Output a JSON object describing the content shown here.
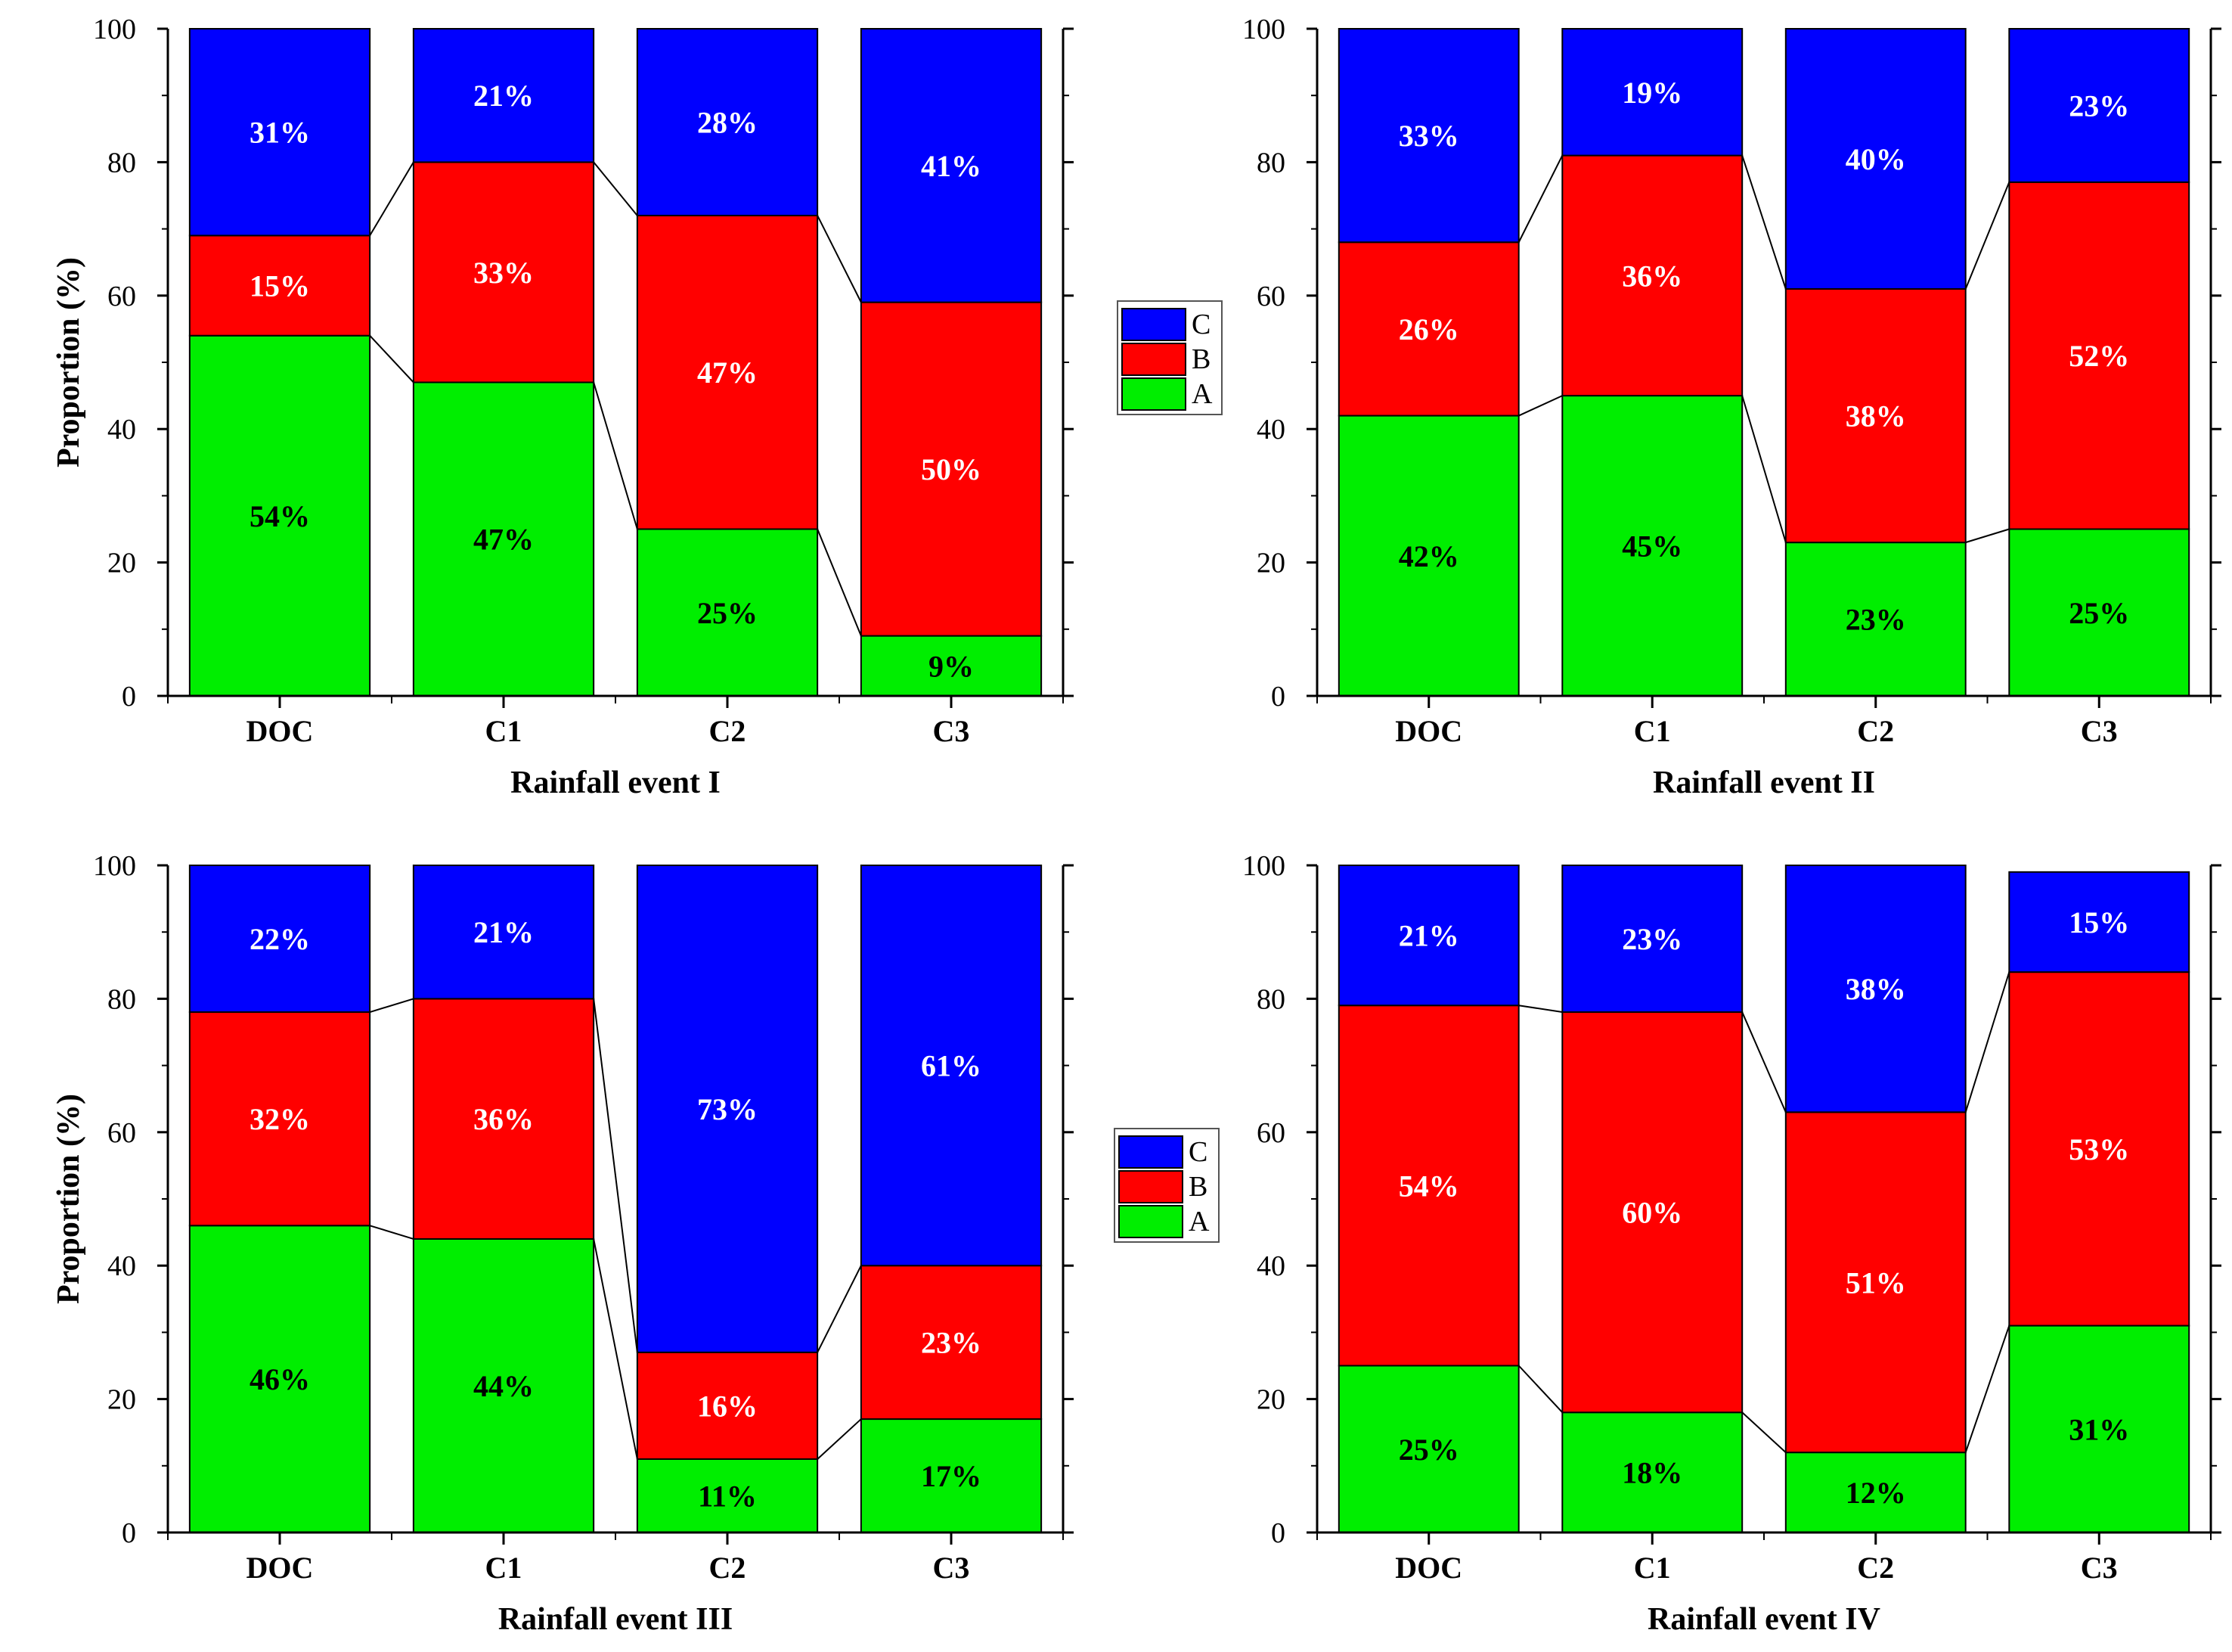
{
  "chart_data": [
    {
      "type": "bar",
      "stacked": true,
      "title": "",
      "xlabel": "Rainfall event I",
      "ylabel": "Proportion (%)",
      "ylim": [
        0,
        100
      ],
      "yticks": [
        "0",
        "20",
        "40",
        "60",
        "80",
        "100"
      ],
      "categories": [
        "DOC",
        "C1",
        "C2",
        "C3"
      ],
      "series": [
        {
          "name": "A",
          "color": "#00ee00",
          "values": [
            54,
            47,
            25,
            9
          ],
          "labels": [
            "54%",
            "47%",
            "25%",
            "9%"
          ]
        },
        {
          "name": "B",
          "color": "#ff0000",
          "values": [
            15,
            33,
            47,
            50
          ],
          "labels": [
            "15%",
            "33%",
            "47%",
            "50%"
          ]
        },
        {
          "name": "C",
          "color": "#0000ff",
          "values": [
            31,
            21,
            28,
            41
          ],
          "labels": [
            "31%",
            "21%",
            "28%",
            "41%"
          ]
        }
      ]
    },
    {
      "type": "bar",
      "stacked": true,
      "title": "",
      "xlabel": "Rainfall event II",
      "ylabel": "",
      "ylim": [
        0,
        100
      ],
      "yticks": [
        "0",
        "20",
        "40",
        "60",
        "80",
        "100"
      ],
      "categories": [
        "DOC",
        "C1",
        "C2",
        "C3"
      ],
      "series": [
        {
          "name": "A",
          "color": "#00ee00",
          "values": [
            42,
            45,
            23,
            25
          ],
          "labels": [
            "42%",
            "45%",
            "23%",
            "25%"
          ]
        },
        {
          "name": "B",
          "color": "#ff0000",
          "values": [
            26,
            36,
            38,
            52
          ],
          "labels": [
            "26%",
            "36%",
            "38%",
            "52%"
          ]
        },
        {
          "name": "C",
          "color": "#0000ff",
          "values": [
            33,
            19,
            40,
            23
          ],
          "labels": [
            "33%",
            "19%",
            "40%",
            "23%"
          ]
        }
      ]
    },
    {
      "type": "bar",
      "stacked": true,
      "title": "",
      "xlabel": "Rainfall event III",
      "ylabel": "Proportion (%)",
      "ylim": [
        0,
        100
      ],
      "yticks": [
        "0",
        "20",
        "40",
        "60",
        "80",
        "100"
      ],
      "categories": [
        "DOC",
        "C1",
        "C2",
        "C3"
      ],
      "series": [
        {
          "name": "A",
          "color": "#00ee00",
          "values": [
            46,
            44,
            11,
            17
          ],
          "labels": [
            "46%",
            "44%",
            "11%",
            "17%"
          ]
        },
        {
          "name": "B",
          "color": "#ff0000",
          "values": [
            32,
            36,
            16,
            23
          ],
          "labels": [
            "32%",
            "36%",
            "16%",
            "23%"
          ]
        },
        {
          "name": "C",
          "color": "#0000ff",
          "values": [
            22,
            21,
            73,
            61
          ],
          "labels": [
            "22%",
            "21%",
            "73%",
            "61%"
          ]
        }
      ]
    },
    {
      "type": "bar",
      "stacked": true,
      "title": "",
      "xlabel": "Rainfall event IV",
      "ylabel": "",
      "ylim": [
        0,
        100
      ],
      "yticks": [
        "0",
        "20",
        "40",
        "60",
        "80",
        "100"
      ],
      "categories": [
        "DOC",
        "C1",
        "C2",
        "C3"
      ],
      "series": [
        {
          "name": "A",
          "color": "#00ee00",
          "values": [
            25,
            18,
            12,
            31
          ],
          "labels": [
            "25%",
            "18%",
            "12%",
            "31%"
          ]
        },
        {
          "name": "B",
          "color": "#ff0000",
          "values": [
            54,
            60,
            51,
            53
          ],
          "labels": [
            "54%",
            "60%",
            "51%",
            "53%"
          ]
        },
        {
          "name": "C",
          "color": "#0000ff",
          "values": [
            21,
            23,
            38,
            15
          ],
          "labels": [
            "21%",
            "23%",
            "38%",
            "15%"
          ]
        }
      ]
    }
  ],
  "legends": [
    {
      "entries": [
        {
          "name": "C",
          "color": "#0000ff"
        },
        {
          "name": "B",
          "color": "#ff0000"
        },
        {
          "name": "A",
          "color": "#00ee00"
        }
      ]
    },
    {
      "entries": [
        {
          "name": "C",
          "color": "#0000ff"
        },
        {
          "name": "B",
          "color": "#ff0000"
        },
        {
          "name": "A",
          "color": "#00ee00"
        }
      ]
    }
  ]
}
